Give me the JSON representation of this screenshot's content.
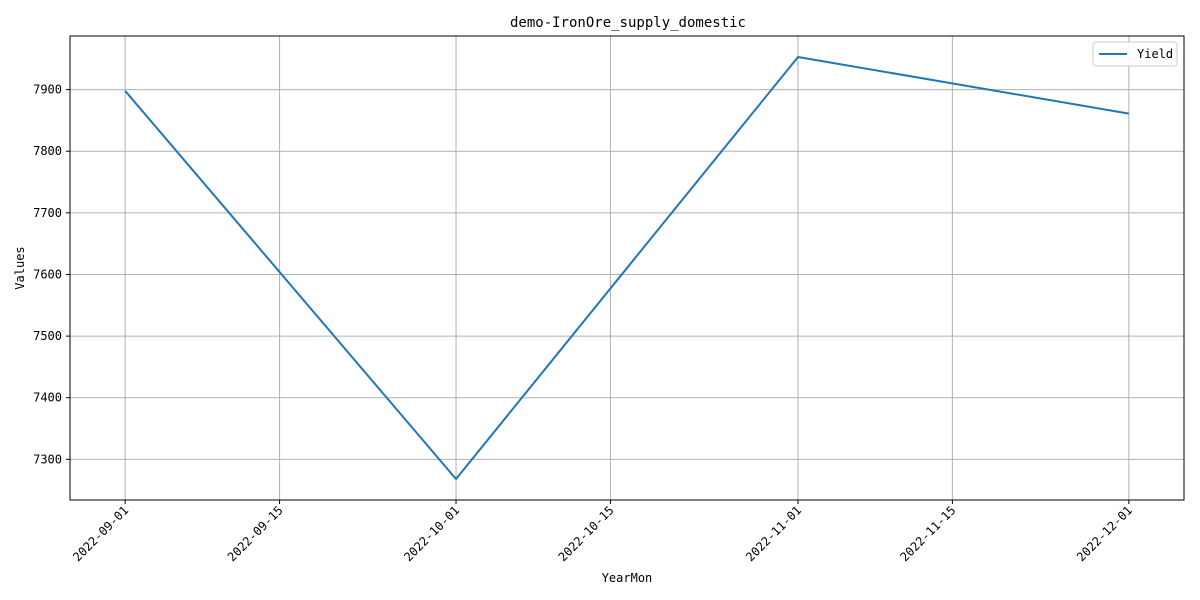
{
  "chart_data": {
    "type": "line",
    "title": "demo-IronOre_supply_domestic",
    "xlabel": "YearMon",
    "ylabel": "Values",
    "x_ticks": [
      "2022-09-01",
      "2022-09-15",
      "2022-10-01",
      "2022-10-15",
      "2022-11-01",
      "2022-11-15",
      "2022-12-01"
    ],
    "y_ticks": [
      7300,
      7400,
      7500,
      7600,
      7700,
      7800,
      7900
    ],
    "xlim": [
      "2022-08-27",
      "2022-12-06"
    ],
    "ylim": [
      7234,
      7987
    ],
    "grid": true,
    "legend_position": "top-right",
    "series": [
      {
        "name": "Yield",
        "color": "#1f77b4",
        "points": [
          {
            "x": "2022-09-01",
            "y": 7898
          },
          {
            "x": "2022-10-01",
            "y": 7268
          },
          {
            "x": "2022-11-01",
            "y": 7953
          },
          {
            "x": "2022-12-01",
            "y": 7861
          }
        ]
      }
    ]
  }
}
